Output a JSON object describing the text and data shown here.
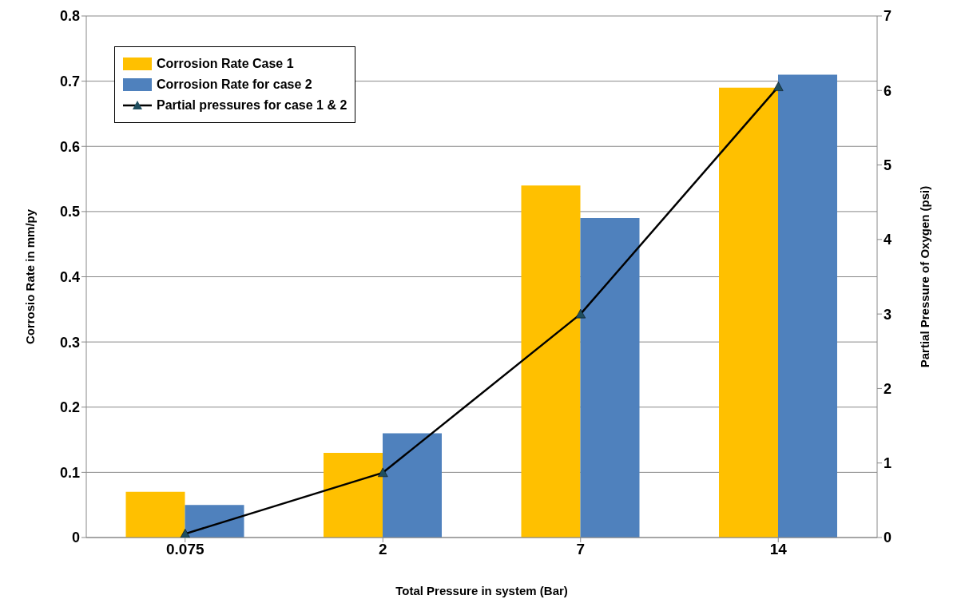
{
  "chart_data": {
    "type": "bar",
    "xlabel": "Total Pressure in system (Bar)",
    "ylabel": "Corrosio Rate in mm/py",
    "y2label": "Partial Pressure of Oxygen (psi)",
    "categories": [
      "0.075",
      "2",
      "7",
      "14"
    ],
    "series": [
      {
        "name": "Corrosion Rate Case 1",
        "color": "#ffc000",
        "values": [
          0.07,
          0.13,
          0.54,
          0.69
        ]
      },
      {
        "name": "Corrosion Rate for case 2",
        "color": "#4f81bd",
        "values": [
          0.05,
          0.16,
          0.49,
          0.71
        ]
      },
      {
        "name": "Partial pressures for case 1 & 2",
        "type": "line",
        "axis": "y2",
        "color": "#000000",
        "marker": "triangle",
        "values": [
          0.05,
          0.87,
          3.0,
          6.05
        ]
      }
    ],
    "ylim": [
      0,
      0.8
    ],
    "yticks": [
      0,
      0.1,
      0.2,
      0.3,
      0.4,
      0.5,
      0.6,
      0.7,
      0.8
    ],
    "y2lim": [
      0,
      7
    ],
    "y2ticks": [
      0,
      1,
      2,
      3,
      4,
      5,
      6,
      7
    ],
    "grid": "y",
    "legend": "top left"
  }
}
